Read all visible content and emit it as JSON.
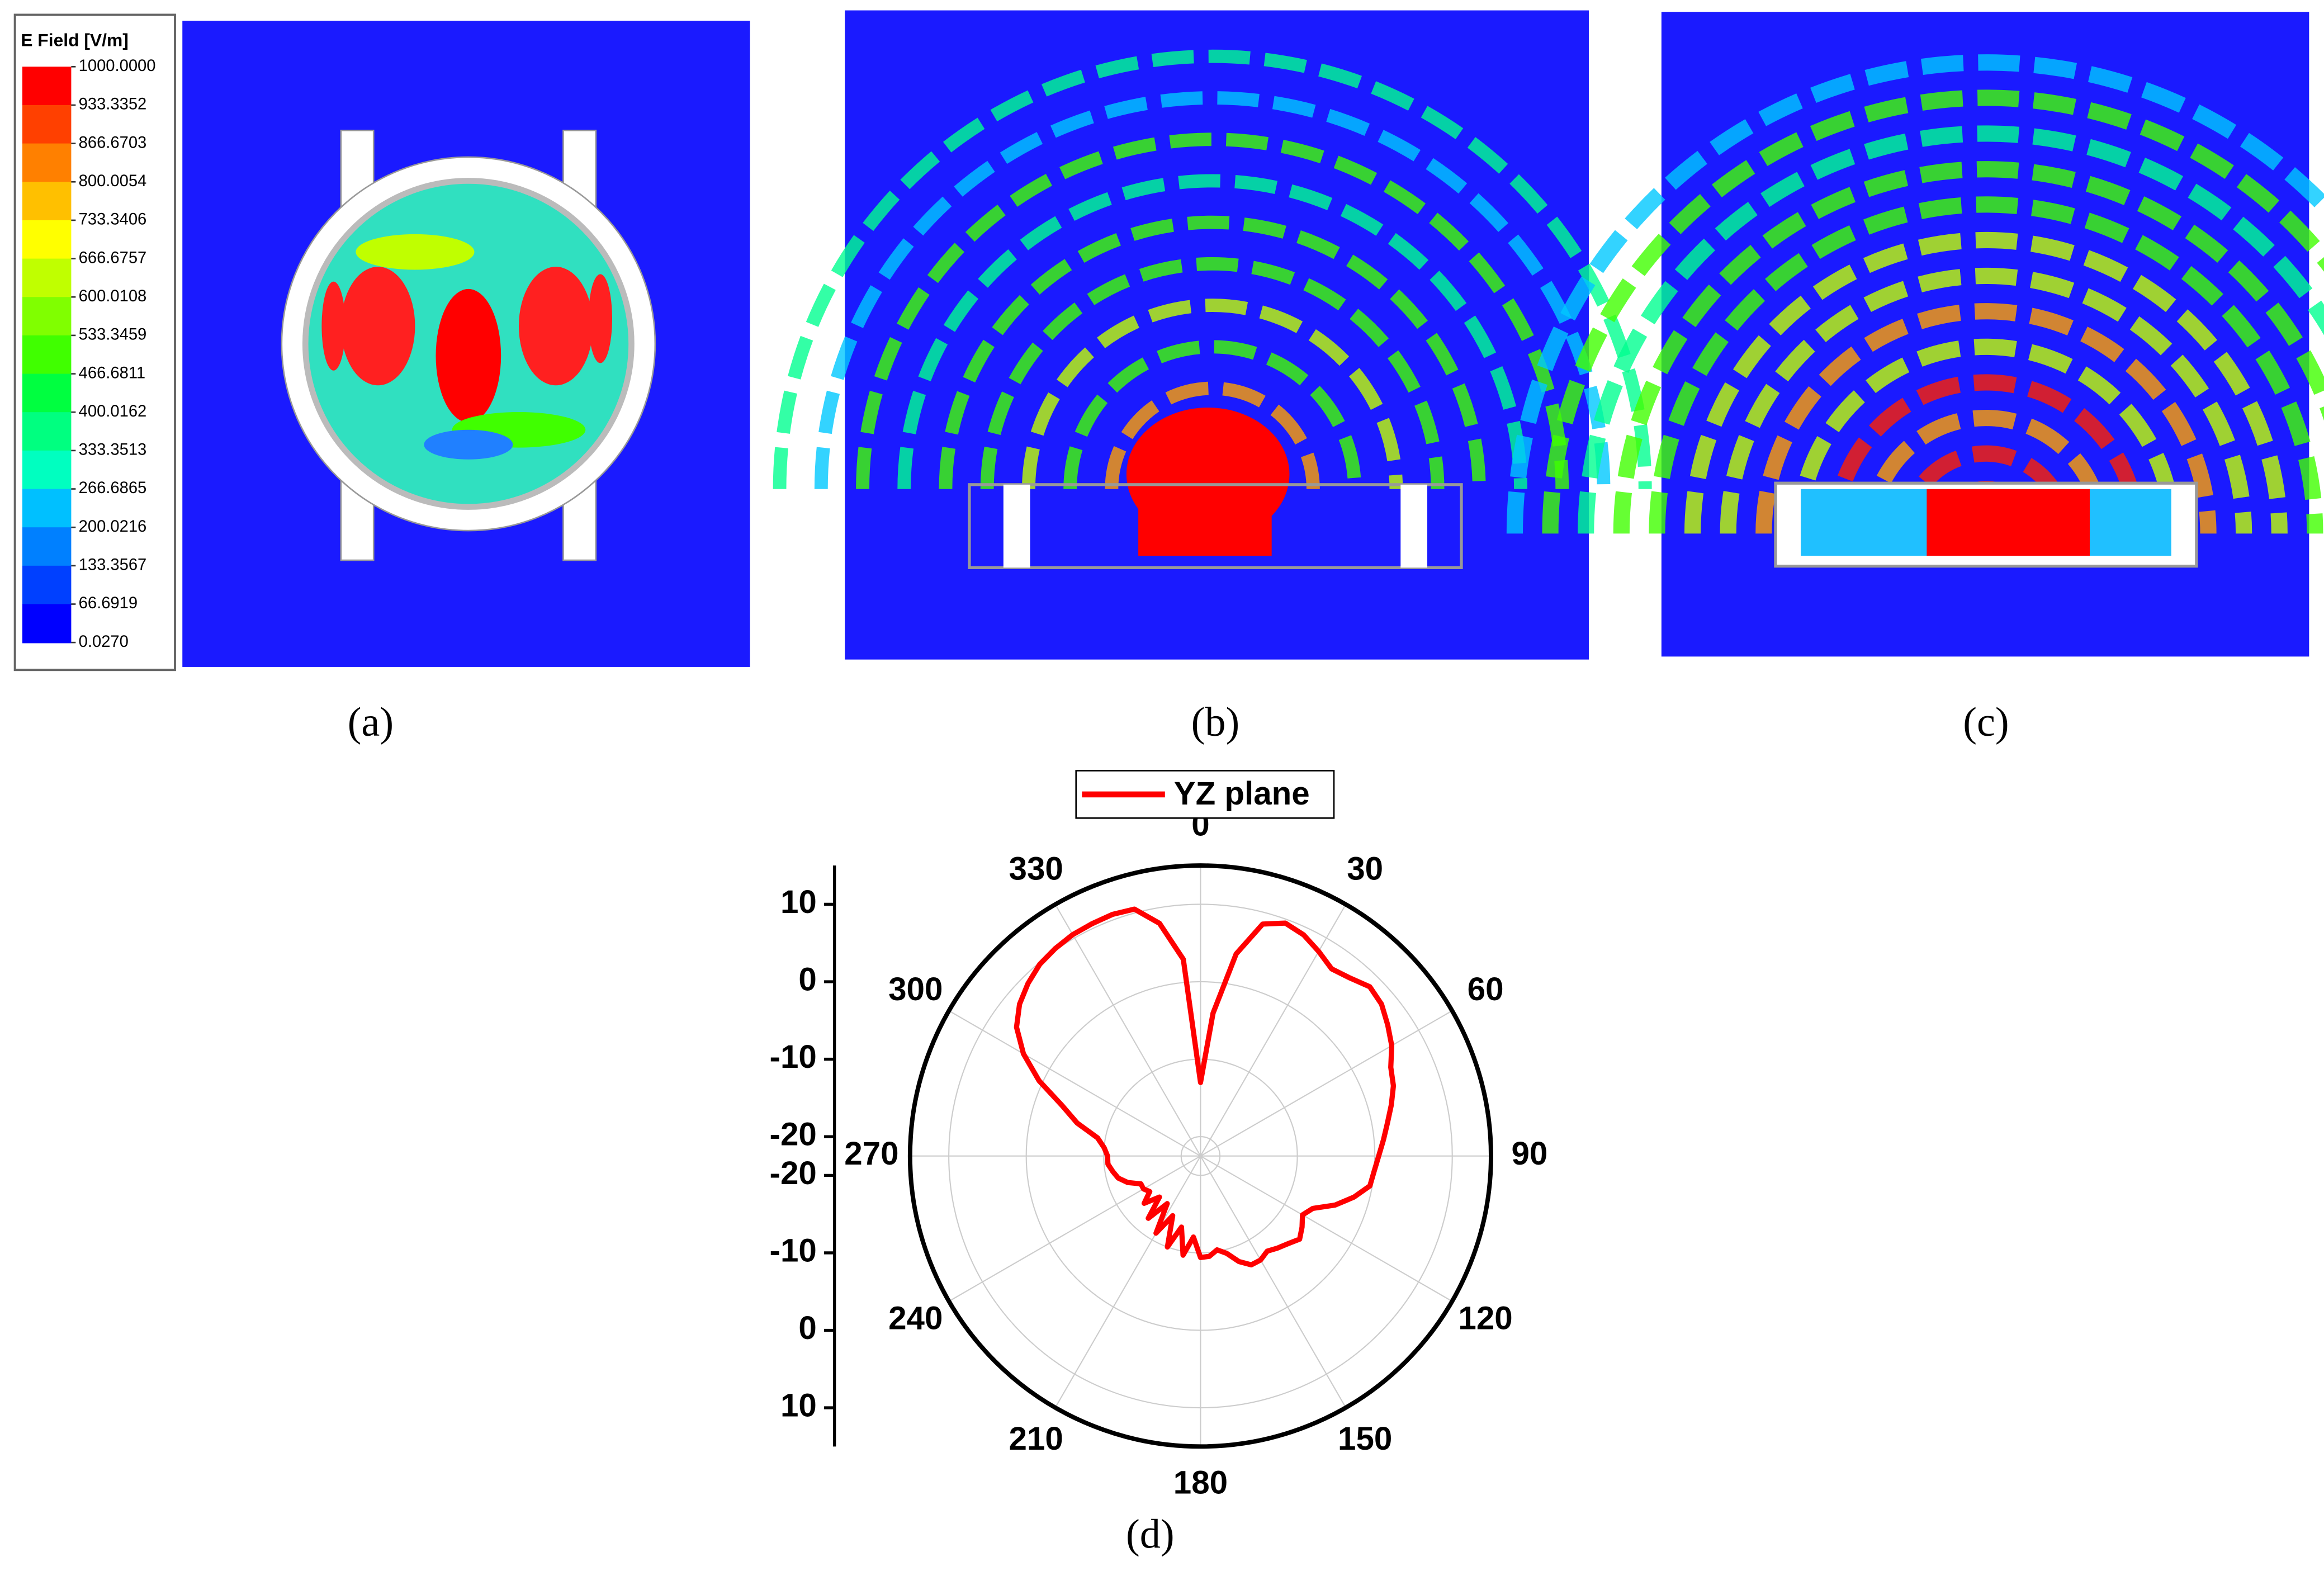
{
  "chart_data": [
    {
      "type": "field-map",
      "caption": "(a)",
      "colorbar": {
        "title": "E Field [V/m]",
        "ticks": [
          {
            "value": 1000,
            "label": "1000.0000"
          },
          {
            "value": 933.3352,
            "label": "933.3352"
          },
          {
            "value": 866.6703,
            "label": "866.6703"
          },
          {
            "value": 800.0054,
            "label": "800.0054"
          },
          {
            "value": 733.3406,
            "label": "733.3406"
          },
          {
            "value": 666.6757,
            "label": "666.6757"
          },
          {
            "value": 600.0108,
            "label": "600.0108"
          },
          {
            "value": 533.3459,
            "label": "533.3459"
          },
          {
            "value": 466.6811,
            "label": "466.6811"
          },
          {
            "value": 400.0162,
            "label": "400.0162"
          },
          {
            "value": 333.3513,
            "label": "333.3513"
          },
          {
            "value": 266.6865,
            "label": "266.6865"
          },
          {
            "value": 200.0216,
            "label": "200.0216"
          },
          {
            "value": 133.3567,
            "label": "133.3567"
          },
          {
            "value": 66.6919,
            "label": "66.6919"
          },
          {
            "value": 0.027,
            "label": "0.0270"
          }
        ],
        "colors": [
          "#ff0000",
          "#ff4000",
          "#ff8000",
          "#ffc000",
          "#ffff00",
          "#c0ff00",
          "#80ff00",
          "#40ff00",
          "#00ff40",
          "#00ff80",
          "#00ffc0",
          "#00c0ff",
          "#0080ff",
          "#0040ff",
          "#0000ff"
        ]
      }
    },
    {
      "type": "field-map",
      "caption": "(b)"
    },
    {
      "type": "field-map",
      "caption": "(c)"
    },
    {
      "type": "polar",
      "caption": "(d)",
      "x": [
        0,
        5,
        10,
        15,
        20,
        25,
        30,
        35,
        40,
        45,
        50,
        55,
        60,
        65,
        70,
        75,
        80,
        85,
        90,
        95,
        100,
        105,
        110,
        115,
        120,
        125,
        130,
        135,
        140,
        145,
        150,
        155,
        160,
        165,
        170,
        175,
        180,
        185,
        190,
        195,
        200,
        205,
        210,
        215,
        220,
        225,
        230,
        235,
        240,
        245,
        250,
        255,
        260,
        265,
        270,
        275,
        280,
        285,
        290,
        295,
        300,
        305,
        310,
        315,
        320,
        325,
        330,
        335,
        340,
        345,
        350,
        355
      ],
      "series": [
        {
          "name": "YZ plane",
          "color": "#ff0000",
          "values": [
            -13,
            -4,
            4,
            8.5,
            9.5,
            9,
            8,
            7,
            7.5,
            8.4,
            8,
            7,
            6,
            4.6,
            4,
            3,
            2,
            1.2,
            0.5,
            0,
            -0.3,
            -2,
            -4,
            -6.5,
            -7.3,
            -6.5,
            -5.8,
            -6.5,
            -7,
            -7.5,
            -7,
            -7,
            -8,
            -9.5,
            -10.2,
            -9.5,
            -9.4,
            -12,
            -9.5,
            -13,
            -10,
            -14,
            -11,
            -15,
            -12,
            -15,
            -13,
            -14.5,
            -14,
            -14,
            -12.5,
            -11.5,
            -11,
            -10.5,
            -10.5,
            -10,
            -9,
            -6,
            -3.5,
            0.5,
            3.9,
            6.5,
            8,
            9,
            9.8,
            10.2,
            10.5,
            10.6,
            10.7,
            10.5,
            8,
            3
          ]
        }
      ],
      "rlim": [
        -22.5,
        15
      ],
      "rticks": [
        -20,
        -10,
        0,
        10
      ],
      "thetaticks": [
        0,
        30,
        60,
        90,
        120,
        150,
        180,
        210,
        240,
        270,
        300,
        330
      ],
      "grid": true
    }
  ]
}
